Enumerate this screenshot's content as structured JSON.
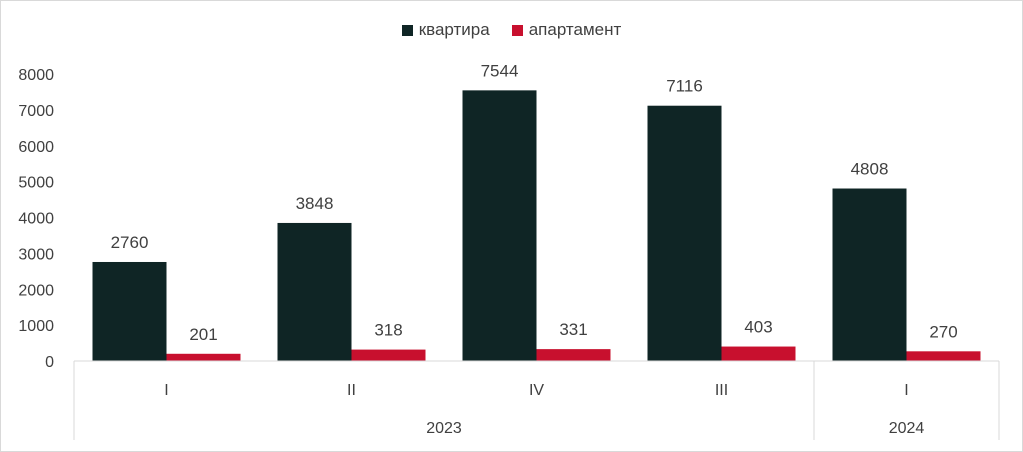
{
  "chart_data": {
    "type": "bar",
    "categories": [
      "I",
      "II",
      "IV",
      "III",
      "I"
    ],
    "groups": [
      {
        "label": "2023",
        "count": 4
      },
      {
        "label": "2024",
        "count": 1
      }
    ],
    "series": [
      {
        "name": "квартира",
        "values": [
          2760,
          3848,
          7544,
          7116,
          4808
        ],
        "color": "#0f2525"
      },
      {
        "name": "апартамент",
        "values": [
          201,
          318,
          331,
          403,
          270
        ],
        "color": "#c8102e"
      }
    ],
    "ylim": [
      0,
      8000
    ],
    "yticks": [
      "0",
      "1000",
      "2000",
      "3000",
      "4000",
      "5000",
      "6000",
      "7000",
      "8000"
    ],
    "legend_position": "top",
    "grid": false
  }
}
